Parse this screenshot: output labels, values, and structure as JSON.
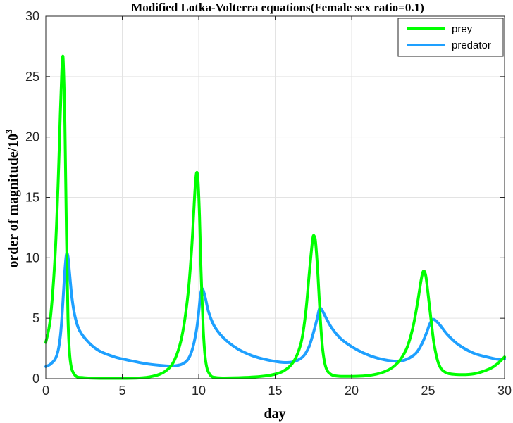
{
  "chart_data": {
    "type": "line",
    "title": "Modified Lotka-Volterra equations(Female sex ratio=0.1)",
    "xlabel": "day",
    "ylabel_base": "order of magnitude/10",
    "ylabel_exponent": "3",
    "xlim": [
      0,
      30
    ],
    "ylim": [
      0,
      30
    ],
    "xticks": [
      0,
      5,
      10,
      15,
      20,
      25,
      30
    ],
    "yticks": [
      0,
      5,
      10,
      15,
      20,
      25,
      30
    ],
    "grid": true,
    "legend_position": "top-right",
    "series": [
      {
        "name": "prey",
        "color": "#00ff00",
        "points": [
          [
            0,
            3.0
          ],
          [
            0.3,
            5.0
          ],
          [
            0.6,
            10.0
          ],
          [
            0.8,
            16.0
          ],
          [
            0.95,
            22.0
          ],
          [
            1.05,
            25.5
          ],
          [
            1.1,
            26.6
          ],
          [
            1.15,
            26.0
          ],
          [
            1.25,
            21.0
          ],
          [
            1.35,
            12.0
          ],
          [
            1.45,
            5.0
          ],
          [
            1.6,
            1.5
          ],
          [
            1.9,
            0.3
          ],
          [
            2.5,
            0.08
          ],
          [
            4,
            0.03
          ],
          [
            6,
            0.05
          ],
          [
            7,
            0.2
          ],
          [
            7.8,
            0.6
          ],
          [
            8.4,
            1.5
          ],
          [
            8.9,
            3.5
          ],
          [
            9.3,
            7.0
          ],
          [
            9.55,
            11.0
          ],
          [
            9.75,
            15.5
          ],
          [
            9.85,
            17.0
          ],
          [
            9.95,
            16.5
          ],
          [
            10.05,
            13.5
          ],
          [
            10.15,
            9.0
          ],
          [
            10.3,
            4.0
          ],
          [
            10.45,
            1.5
          ],
          [
            10.7,
            0.4
          ],
          [
            11.2,
            0.08
          ],
          [
            13,
            0.1
          ],
          [
            14.5,
            0.25
          ],
          [
            15.5,
            0.6
          ],
          [
            16.2,
            1.4
          ],
          [
            16.7,
            3.0
          ],
          [
            17.0,
            5.5
          ],
          [
            17.25,
            9.0
          ],
          [
            17.45,
            11.5
          ],
          [
            17.55,
            11.8
          ],
          [
            17.65,
            11.2
          ],
          [
            17.8,
            8.5
          ],
          [
            17.95,
            5.0
          ],
          [
            18.1,
            2.5
          ],
          [
            18.3,
            1.0
          ],
          [
            18.6,
            0.4
          ],
          [
            19.2,
            0.2
          ],
          [
            21,
            0.25
          ],
          [
            22.2,
            0.6
          ],
          [
            23.0,
            1.3
          ],
          [
            23.6,
            2.5
          ],
          [
            24.0,
            4.2
          ],
          [
            24.3,
            6.2
          ],
          [
            24.55,
            8.2
          ],
          [
            24.7,
            8.9
          ],
          [
            24.85,
            8.5
          ],
          [
            25.0,
            7.0
          ],
          [
            25.2,
            4.8
          ],
          [
            25.4,
            2.8
          ],
          [
            25.7,
            1.2
          ],
          [
            26.1,
            0.55
          ],
          [
            26.8,
            0.35
          ],
          [
            28,
            0.4
          ],
          [
            29,
            0.8
          ],
          [
            29.5,
            1.2
          ],
          [
            30,
            1.8
          ]
        ]
      },
      {
        "name": "predator",
        "color": "#1ea0ff",
        "points": [
          [
            0,
            1.0
          ],
          [
            0.3,
            1.2
          ],
          [
            0.6,
            1.6
          ],
          [
            0.8,
            2.3
          ],
          [
            0.95,
            3.5
          ],
          [
            1.05,
            5.0
          ],
          [
            1.15,
            7.0
          ],
          [
            1.25,
            9.0
          ],
          [
            1.35,
            10.3
          ],
          [
            1.45,
            10.1
          ],
          [
            1.55,
            8.8
          ],
          [
            1.7,
            6.8
          ],
          [
            1.9,
            5.2
          ],
          [
            2.2,
            4.0
          ],
          [
            2.8,
            3.0
          ],
          [
            3.5,
            2.3
          ],
          [
            4.5,
            1.8
          ],
          [
            5.5,
            1.5
          ],
          [
            6.5,
            1.25
          ],
          [
            7.5,
            1.1
          ],
          [
            8.3,
            1.05
          ],
          [
            8.9,
            1.2
          ],
          [
            9.3,
            1.6
          ],
          [
            9.6,
            2.5
          ],
          [
            9.85,
            4.0
          ],
          [
            10.0,
            5.5
          ],
          [
            10.1,
            6.8
          ],
          [
            10.2,
            7.4
          ],
          [
            10.3,
            7.3
          ],
          [
            10.45,
            6.6
          ],
          [
            10.65,
            5.5
          ],
          [
            11.0,
            4.4
          ],
          [
            11.6,
            3.4
          ],
          [
            12.5,
            2.5
          ],
          [
            13.5,
            1.9
          ],
          [
            14.5,
            1.55
          ],
          [
            15.5,
            1.35
          ],
          [
            16.2,
            1.4
          ],
          [
            16.8,
            1.8
          ],
          [
            17.2,
            2.6
          ],
          [
            17.5,
            3.8
          ],
          [
            17.75,
            5.0
          ],
          [
            17.9,
            5.8
          ],
          [
            18.05,
            5.7
          ],
          [
            18.3,
            5.1
          ],
          [
            18.7,
            4.2
          ],
          [
            19.3,
            3.3
          ],
          [
            20.2,
            2.5
          ],
          [
            21.2,
            1.9
          ],
          [
            22.2,
            1.55
          ],
          [
            23.0,
            1.45
          ],
          [
            23.6,
            1.6
          ],
          [
            24.2,
            2.1
          ],
          [
            24.6,
            2.9
          ],
          [
            24.9,
            3.8
          ],
          [
            25.1,
            4.5
          ],
          [
            25.3,
            4.9
          ],
          [
            25.5,
            4.8
          ],
          [
            25.8,
            4.4
          ],
          [
            26.3,
            3.6
          ],
          [
            27.0,
            2.8
          ],
          [
            28.0,
            2.1
          ],
          [
            29.0,
            1.75
          ],
          [
            29.6,
            1.6
          ],
          [
            30,
            1.65
          ]
        ]
      }
    ]
  }
}
